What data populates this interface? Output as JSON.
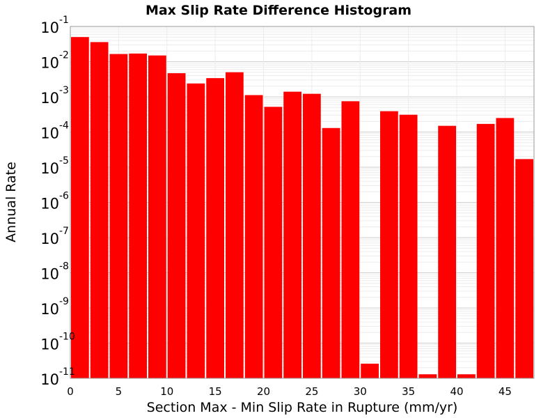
{
  "chart_data": {
    "type": "bar",
    "title": "Max Slip Rate Difference Histogram",
    "xlabel": "Section Max - Min Slip Rate in Rupture (mm/yr)",
    "ylabel": "Annual Rate",
    "xlim": [
      0,
      48
    ],
    "ylim": [
      1e-11,
      0.1
    ],
    "yscale": "log",
    "grid": true,
    "x_ticks": [
      "0",
      "5",
      "10",
      "15",
      "20",
      "25",
      "30",
      "35",
      "40",
      "45"
    ],
    "y_ticks": [
      {
        "base": "10",
        "exp": "-1"
      },
      {
        "base": "10",
        "exp": "-2"
      },
      {
        "base": "10",
        "exp": "-3"
      },
      {
        "base": "10",
        "exp": "-4"
      },
      {
        "base": "10",
        "exp": "-5"
      },
      {
        "base": "10",
        "exp": "-6"
      },
      {
        "base": "10",
        "exp": "-7"
      },
      {
        "base": "10",
        "exp": "-8"
      },
      {
        "base": "10",
        "exp": "-9"
      },
      {
        "base": "10",
        "exp": "-10"
      },
      {
        "base": "10",
        "exp": "-11"
      }
    ],
    "bar_color": "#ff0000",
    "bin_width": 2,
    "bins": [
      {
        "x0": 0,
        "x1": 2,
        "value": 0.05
      },
      {
        "x0": 2,
        "x1": 4,
        "value": 0.036
      },
      {
        "x0": 4,
        "x1": 6,
        "value": 0.0165
      },
      {
        "x0": 6,
        "x1": 8,
        "value": 0.017
      },
      {
        "x0": 8,
        "x1": 10,
        "value": 0.015
      },
      {
        "x0": 10,
        "x1": 12,
        "value": 0.0047
      },
      {
        "x0": 12,
        "x1": 14,
        "value": 0.0024
      },
      {
        "x0": 14,
        "x1": 16,
        "value": 0.0034
      },
      {
        "x0": 16,
        "x1": 18,
        "value": 0.005
      },
      {
        "x0": 18,
        "x1": 20,
        "value": 0.00112
      },
      {
        "x0": 20,
        "x1": 22,
        "value": 0.00052
      },
      {
        "x0": 22,
        "x1": 24,
        "value": 0.0014
      },
      {
        "x0": 24,
        "x1": 26,
        "value": 0.00122
      },
      {
        "x0": 26,
        "x1": 28,
        "value": 0.00013
      },
      {
        "x0": 28,
        "x1": 30,
        "value": 0.00075
      },
      {
        "x0": 30,
        "x1": 32,
        "value": 2.6e-11
      },
      {
        "x0": 32,
        "x1": 34,
        "value": 0.00039
      },
      {
        "x0": 34,
        "x1": 36,
        "value": 0.00031
      },
      {
        "x0": 36,
        "x1": 38,
        "value": 1.3e-11
      },
      {
        "x0": 38,
        "x1": 40,
        "value": 0.00015
      },
      {
        "x0": 40,
        "x1": 42,
        "value": 1.3e-11
      },
      {
        "x0": 42,
        "x1": 44,
        "value": 0.00017
      },
      {
        "x0": 44,
        "x1": 46,
        "value": 0.00025
      },
      {
        "x0": 46,
        "x1": 48,
        "value": 1.7e-05
      }
    ]
  }
}
